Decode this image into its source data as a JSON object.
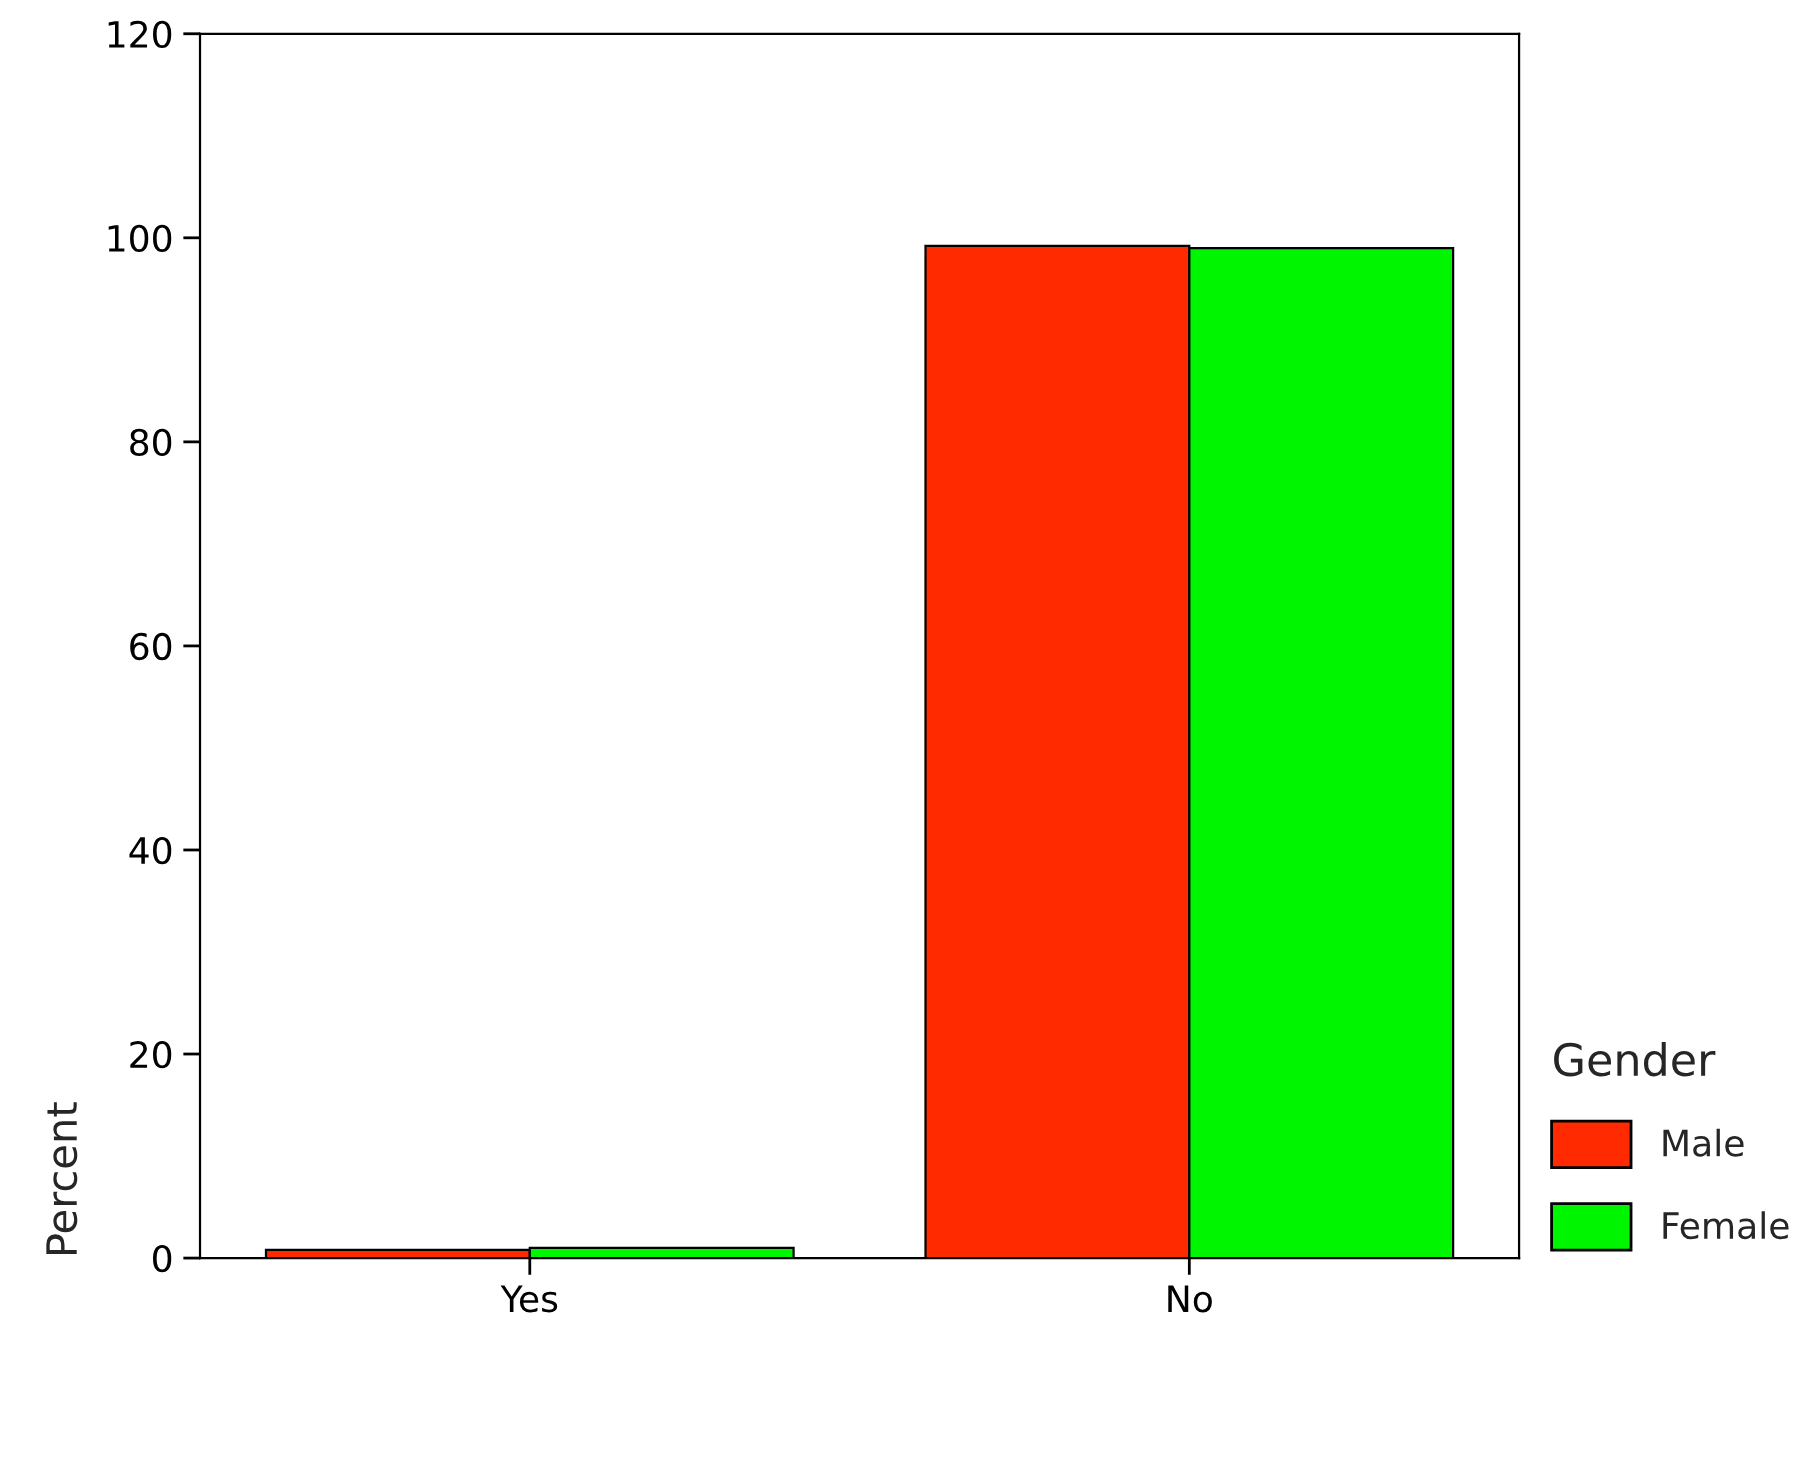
{
  "chart_data": {
    "type": "bar",
    "ylabel": "Percent",
    "legend_title": "Gender",
    "categories": [
      "Yes",
      "No"
    ],
    "series": [
      {
        "name": "Male",
        "color": "#ff2a00",
        "values": [
          0.8,
          99.2
        ]
      },
      {
        "name": "Female",
        "color": "#00f500",
        "values": [
          1.0,
          99.0
        ]
      }
    ],
    "ylim": [
      0,
      120
    ],
    "yticks": [
      0,
      20,
      40,
      60,
      80,
      100,
      120
    ],
    "grid": false,
    "legend": "bottom right"
  }
}
